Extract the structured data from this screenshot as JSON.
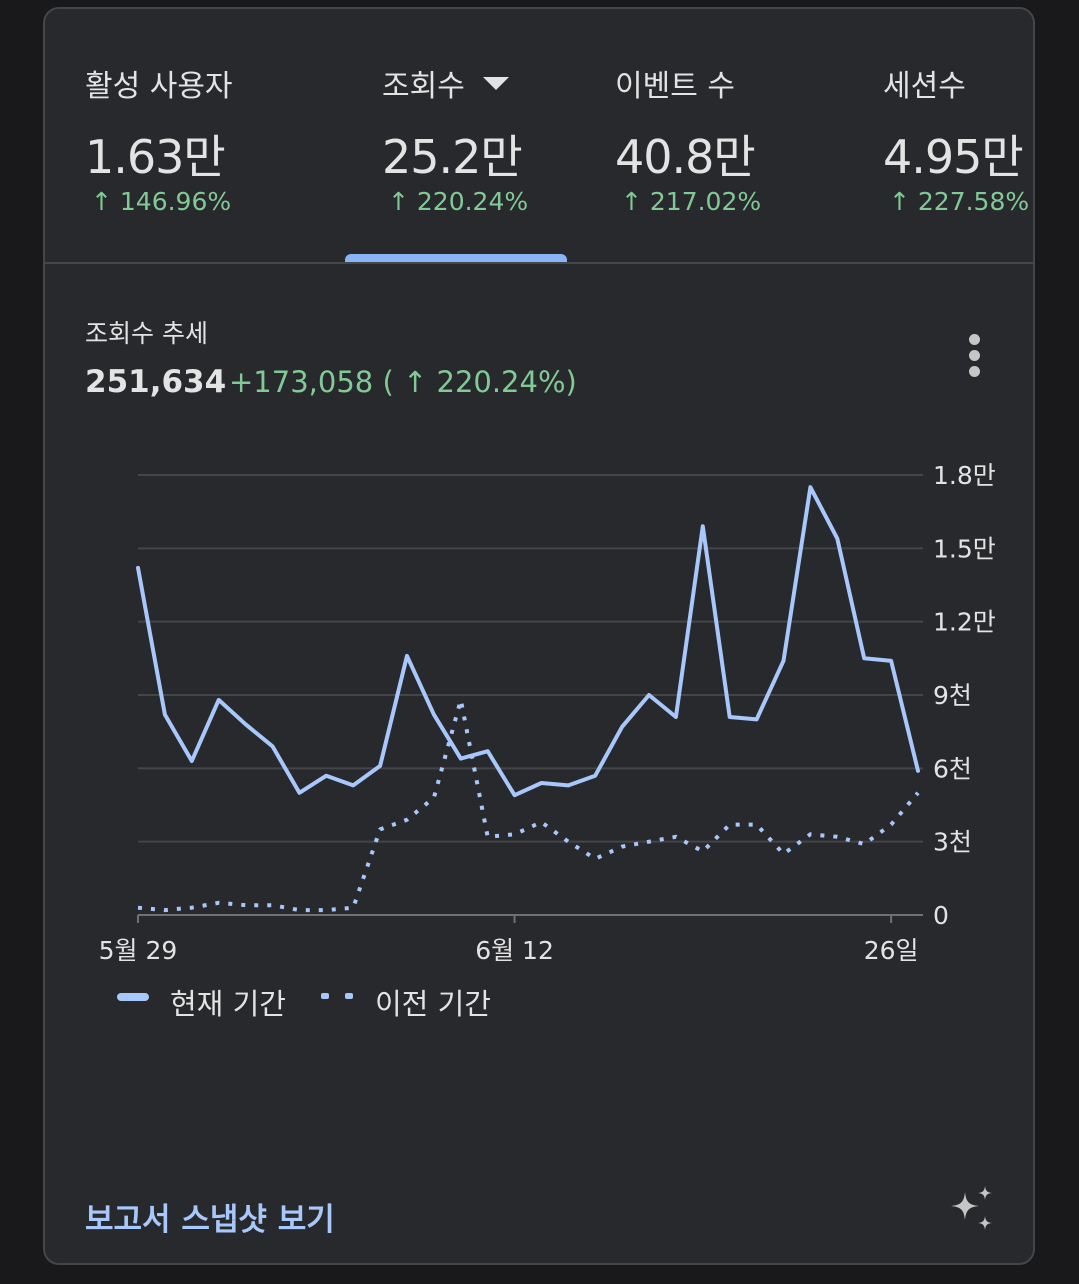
{
  "metrics": [
    {
      "label": "활성 사용자",
      "value": "1.63만",
      "delta": "↑ 146.96%"
    },
    {
      "label": "조회수",
      "value": "25.2만",
      "delta": "↑ 220.24%",
      "selected": true
    },
    {
      "label": "이벤트 수",
      "value": "40.8만",
      "delta": "↑ 217.02%"
    },
    {
      "label": "세션수",
      "value": "4.95만",
      "delta": "↑ 227.58%"
    }
  ],
  "chart_header": {
    "title": "조회수 추세",
    "total": "251,634",
    "change": "+173,058 ( ↑ 220.24%)"
  },
  "chart_data": {
    "type": "line",
    "title": "조회수 추세",
    "x_labels": [
      "5월 29",
      "6월 12",
      "26일"
    ],
    "y_tick_labels": [
      "0",
      "3천",
      "6천",
      "9천",
      "1.2만",
      "1.5만",
      "1.8만"
    ],
    "y_ticks": [
      0,
      3000,
      6000,
      9000,
      12000,
      15000,
      18000
    ],
    "ylim": [
      0,
      18000
    ],
    "x": [
      "05-29",
      "05-30",
      "05-31",
      "06-01",
      "06-02",
      "06-03",
      "06-04",
      "06-05",
      "06-06",
      "06-07",
      "06-08",
      "06-09",
      "06-10",
      "06-11",
      "06-12",
      "06-13",
      "06-14",
      "06-15",
      "06-16",
      "06-17",
      "06-18",
      "06-19",
      "06-20",
      "06-21",
      "06-22",
      "06-23",
      "06-24",
      "06-25",
      "06-26",
      "06-27"
    ],
    "grid": true,
    "series": [
      {
        "name": "현재 기간",
        "style": "solid",
        "color": "#a8c7fa",
        "values": [
          14200,
          8200,
          6300,
          8800,
          7800,
          6900,
          5000,
          5700,
          5300,
          6100,
          10600,
          8200,
          6400,
          6700,
          4900,
          5400,
          5300,
          5700,
          7700,
          9000,
          8100,
          15900,
          8100,
          8000,
          10400,
          17500,
          15400,
          10500,
          10400,
          5900
        ]
      },
      {
        "name": "이전 기간",
        "style": "dotted",
        "color": "#a8c7fa",
        "values": [
          300,
          200,
          300,
          500,
          400,
          400,
          200,
          200,
          300,
          3500,
          3900,
          4800,
          8800,
          3200,
          3300,
          3800,
          3000,
          2300,
          2800,
          3000,
          3200,
          2600,
          3700,
          3700,
          2500,
          3300,
          3200,
          2900,
          3700,
          5000
        ]
      }
    ],
    "legend_position": "bottom-left"
  },
  "legend": {
    "current": "현재 기간",
    "previous": "이전 기간"
  },
  "footer": {
    "report_link": "보고서 스냅샷 보기"
  },
  "icons": {
    "more": "more-vert-icon",
    "insights": "sparkle-icon",
    "caret": "dropdown-caret-icon"
  }
}
